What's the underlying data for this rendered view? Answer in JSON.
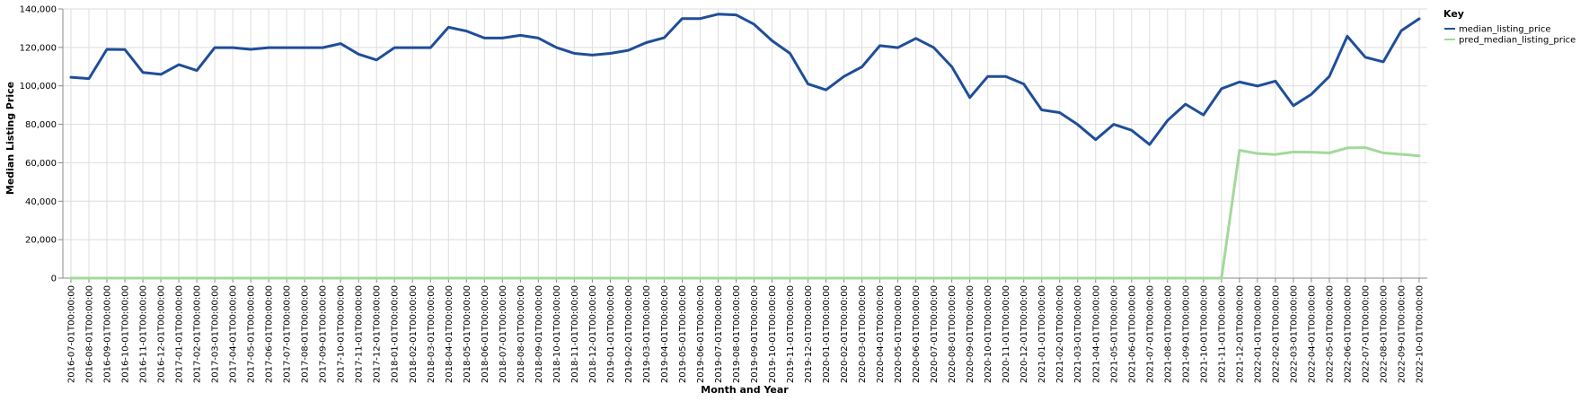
{
  "chart_data": {
    "type": "line",
    "xlabel": "Month and Year",
    "ylabel": "Median Listing Price",
    "ylim": [
      0,
      140000
    ],
    "yticks": [
      0,
      20000,
      40000,
      60000,
      80000,
      100000,
      120000,
      140000
    ],
    "ytick_labels": [
      "0",
      "20,000",
      "40,000",
      "60,000",
      "80,000",
      "100,000",
      "120,000",
      "140,000"
    ],
    "grid": true,
    "legend": {
      "title": "Key",
      "placement": "top-right"
    },
    "x": [
      "2016-07-01T00:00:00",
      "2016-08-01T00:00:00",
      "2016-09-01T00:00:00",
      "2016-10-01T00:00:00",
      "2016-11-01T00:00:00",
      "2016-12-01T00:00:00",
      "2017-01-01T00:00:00",
      "2017-02-01T00:00:00",
      "2017-03-01T00:00:00",
      "2017-04-01T00:00:00",
      "2017-05-01T00:00:00",
      "2017-06-01T00:00:00",
      "2017-07-01T00:00:00",
      "2017-08-01T00:00:00",
      "2017-09-01T00:00:00",
      "2017-10-01T00:00:00",
      "2017-11-01T00:00:00",
      "2017-12-01T00:00:00",
      "2018-01-01T00:00:00",
      "2018-02-01T00:00:00",
      "2018-03-01T00:00:00",
      "2018-04-01T00:00:00",
      "2018-05-01T00:00:00",
      "2018-06-01T00:00:00",
      "2018-07-01T00:00:00",
      "2018-08-01T00:00:00",
      "2018-09-01T00:00:00",
      "2018-10-01T00:00:00",
      "2018-11-01T00:00:00",
      "2018-12-01T00:00:00",
      "2019-01-01T00:00:00",
      "2019-02-01T00:00:00",
      "2019-03-01T00:00:00",
      "2019-04-01T00:00:00",
      "2019-05-01T00:00:00",
      "2019-06-01T00:00:00",
      "2019-07-01T00:00:00",
      "2019-08-01T00:00:00",
      "2019-09-01T00:00:00",
      "2019-10-01T00:00:00",
      "2019-11-01T00:00:00",
      "2019-12-01T00:00:00",
      "2020-01-01T00:00:00",
      "2020-02-01T00:00:00",
      "2020-03-01T00:00:00",
      "2020-04-01T00:00:00",
      "2020-05-01T00:00:00",
      "2020-06-01T00:00:00",
      "2020-07-01T00:00:00",
      "2020-08-01T00:00:00",
      "2020-09-01T00:00:00",
      "2020-10-01T00:00:00",
      "2020-11-01T00:00:00",
      "2020-12-01T00:00:00",
      "2021-01-01T00:00:00",
      "2021-02-01T00:00:00",
      "2021-03-01T00:00:00",
      "2021-04-01T00:00:00",
      "2021-05-01T00:00:00",
      "2021-06-01T00:00:00",
      "2021-07-01T00:00:00",
      "2021-08-01T00:00:00",
      "2021-09-01T00:00:00",
      "2021-10-01T00:00:00",
      "2021-11-01T00:00:00",
      "2021-12-01T00:00:00",
      "2022-01-01T00:00:00",
      "2022-02-01T00:00:00",
      "2022-03-01T00:00:00",
      "2022-04-01T00:00:00",
      "2022-05-01T00:00:00",
      "2022-06-01T00:00:00",
      "2022-07-01T00:00:00",
      "2022-08-01T00:00:00",
      "2022-09-01T00:00:00",
      "2022-10-01T00:00:00"
    ],
    "series": [
      {
        "name": "median_listing_price",
        "color": "#1f4e99",
        "values": [
          104500,
          103800,
          119000,
          118900,
          107000,
          106000,
          111000,
          108000,
          119900,
          119900,
          119000,
          119900,
          119900,
          119900,
          119900,
          122000,
          116500,
          113500,
          119900,
          119900,
          119900,
          130500,
          128500,
          124900,
          124900,
          126300,
          124900,
          120000,
          116900,
          116000,
          116900,
          118500,
          122500,
          125000,
          135000,
          135000,
          137300,
          136900,
          132000,
          123500,
          116900,
          101000,
          97900,
          104900,
          109900,
          120900,
          119900,
          124700,
          119900,
          109900,
          93900,
          104900,
          104900,
          101000,
          87500,
          86100,
          79900,
          72000,
          80000,
          76900,
          69500,
          82000,
          90500,
          84900,
          98500,
          102000,
          99900,
          102500,
          89700,
          95600,
          104900,
          125800,
          114900,
          112500,
          128700,
          134900
        ]
      },
      {
        "name": "pred_median_listing_price",
        "color": "#a2d99a",
        "values": [
          0,
          0,
          0,
          0,
          0,
          0,
          0,
          0,
          0,
          0,
          0,
          0,
          0,
          0,
          0,
          0,
          0,
          0,
          0,
          0,
          0,
          0,
          0,
          0,
          0,
          0,
          0,
          0,
          0,
          0,
          0,
          0,
          0,
          0,
          0,
          0,
          0,
          0,
          0,
          0,
          0,
          0,
          0,
          0,
          0,
          0,
          0,
          0,
          0,
          0,
          0,
          0,
          0,
          0,
          0,
          0,
          0,
          0,
          0,
          0,
          0,
          0,
          0,
          0,
          0,
          66500,
          64800,
          64300,
          65600,
          65500,
          65100,
          67700,
          67900,
          65100,
          64400,
          63600
        ]
      }
    ]
  }
}
